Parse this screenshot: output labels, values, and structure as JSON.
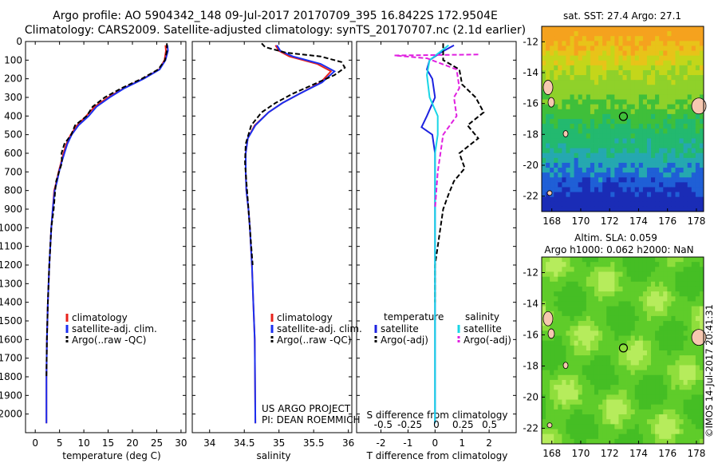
{
  "header": {
    "line1": "Argo profile: AO 5904342_148 09-Jul-2017 20170709_395 16.8422S 172.9504E",
    "line2": "Climatology: CARS2009. Satellite-adjusted climatology: synTS_20170707.nc (2.1d earlier)"
  },
  "colors": {
    "climatology": "#e8221b",
    "satellite": "#1b2ff0",
    "argo": "#000000",
    "sat_t": "#1d22e0",
    "sat_s": "#19d6e6",
    "argo_s": "#e020e0"
  },
  "chart_data": [
    {
      "type": "line",
      "xlabel": "temperature (deg C)",
      "xlim": [
        -2,
        31
      ],
      "xticks": [
        "0",
        "5",
        "10",
        "15",
        "20",
        "25",
        "30"
      ],
      "ylim": [
        2100,
        0
      ],
      "yticks": [
        "0",
        "100",
        "200",
        "300",
        "400",
        "500",
        "600",
        "700",
        "800",
        "900",
        "1000",
        "1100",
        "1200",
        "1300",
        "1400",
        "1500",
        "1600",
        "1700",
        "1800",
        "1900",
        "2000"
      ],
      "legend": [
        "climatology",
        "satellite-adj. clim.",
        "Argo(..raw -QC)"
      ],
      "series": [
        {
          "name": "climatology",
          "x": [
            26.8,
            26.9,
            26.6,
            25.5,
            22.2,
            18.3,
            15,
            12.2,
            10.5,
            8.6,
            7.3,
            6.4,
            5.8,
            5.3,
            4.8,
            4.4,
            3.9,
            3.6,
            3.3,
            2.9,
            2.6,
            2.4,
            2.3,
            2.3
          ],
          "y": [
            20,
            50,
            100,
            150,
            200,
            250,
            300,
            350,
            400,
            450,
            500,
            550,
            600,
            650,
            700,
            750,
            800,
            900,
            1000,
            1200,
            1400,
            1600,
            1800,
            2050
          ]
        },
        {
          "name": "satellite-adj. clim.",
          "x": [
            27.2,
            27.3,
            26.8,
            25.6,
            22.3,
            18.4,
            15.3,
            12.6,
            11,
            8.9,
            7.5,
            6.6,
            6,
            5.4,
            4.9,
            4.5,
            4,
            3.6,
            3.3,
            2.9,
            2.6,
            2.4,
            2.3,
            2.3
          ],
          "y": [
            20,
            50,
            100,
            150,
            200,
            250,
            300,
            350,
            400,
            450,
            500,
            550,
            600,
            650,
            700,
            750,
            800,
            900,
            1000,
            1200,
            1400,
            1600,
            1800,
            2050
          ]
        },
        {
          "name": "Argo(..raw -QC)",
          "x": [
            27.1,
            27.1,
            26.7,
            25.3,
            21.9,
            17.8,
            14.3,
            11.8,
            10.6,
            8.2,
            7.4,
            6,
            5.4,
            5.5,
            4.9,
            4.3,
            4.1,
            3.8,
            3.3,
            2.9,
            2.6,
            2.4,
            2.3
          ],
          "y": [
            10,
            50,
            100,
            150,
            200,
            250,
            300,
            350,
            400,
            450,
            500,
            550,
            600,
            650,
            700,
            750,
            800,
            900,
            1000,
            1200,
            1400,
            1600,
            1800
          ]
        }
      ]
    },
    {
      "type": "line",
      "xlabel": "salinity",
      "xlim": [
        33.75,
        36.05
      ],
      "xticks": [
        "34",
        "34.5",
        "35",
        "35.5",
        "36"
      ],
      "ylim": [
        2100,
        0
      ],
      "legend": [
        "climatology",
        "satellite-adj. clim.",
        "Argo(..raw -QC)"
      ],
      "annotation": [
        "US ARGO PROJECT",
        "PI: DEAN ROEMMICH"
      ],
      "series": [
        {
          "name": "climatology",
          "x": [
            34.95,
            35,
            35.15,
            35.55,
            35.75,
            35.6,
            35.3,
            35.05,
            34.85,
            34.65,
            34.55,
            34.52,
            34.52,
            34.53,
            34.56,
            34.58,
            34.61,
            34.63,
            34.65,
            34.66
          ],
          "y": [
            20,
            50,
            80,
            120,
            160,
            220,
            280,
            330,
            380,
            450,
            520,
            600,
            700,
            800,
            900,
            1000,
            1200,
            1400,
            1600,
            2050
          ]
        },
        {
          "name": "satellite-adj. clim.",
          "x": [
            34.97,
            35.02,
            35.2,
            35.6,
            35.8,
            35.62,
            35.3,
            35.05,
            34.85,
            34.66,
            34.55,
            34.52,
            34.52,
            34.53,
            34.56,
            34.58,
            34.61,
            34.63,
            34.65,
            34.66
          ],
          "y": [
            20,
            50,
            80,
            120,
            160,
            220,
            280,
            330,
            380,
            450,
            520,
            600,
            700,
            800,
            900,
            1000,
            1200,
            1400,
            1600,
            2050
          ]
        },
        {
          "name": "Argo(..raw -QC)",
          "x": [
            34.75,
            34.8,
            35.1,
            35.6,
            35.9,
            35.95,
            35.8,
            35.5,
            35.2,
            34.95,
            34.75,
            34.6,
            34.52,
            34.51,
            34.53,
            34.55,
            34.58,
            34.62
          ],
          "y": [
            10,
            30,
            60,
            80,
            110,
            140,
            180,
            230,
            280,
            330,
            380,
            450,
            550,
            650,
            750,
            850,
            1000,
            1200
          ]
        }
      ]
    },
    {
      "type": "line",
      "xlabel": "T difference from climatology",
      "xlim": [
        -2.9,
        3.0
      ],
      "xticks": [
        "-2",
        "-1",
        "0",
        "1",
        "2"
      ],
      "top_label": "S difference from climatology",
      "top_ticks": [
        "-0.5",
        "-0.25",
        "0",
        "0.25",
        "0.5"
      ],
      "ylim": [
        2100,
        0
      ],
      "legend_titles": [
        "temperature",
        "salinity"
      ],
      "legend": [
        "satellite",
        "Argo(-adj)",
        "satellite",
        "Argo(-adj)"
      ],
      "series": [
        {
          "name": "satellite",
          "x": [
            0.7,
            0.2,
            -0.2,
            -0.3,
            -0.1,
            0,
            -0.3,
            -0.5,
            -0.1,
            0,
            0,
            0,
            0,
            0
          ],
          "y": [
            20,
            60,
            100,
            150,
            200,
            300,
            400,
            460,
            500,
            600,
            800,
            1000,
            1500,
            2050
          ]
        },
        {
          "name": "Argo(-adj)",
          "x": [
            0.3,
            0.3,
            0.9,
            1,
            1.5,
            1.8,
            1.2,
            1.6,
            0.9,
            1.1,
            0.7,
            0.5,
            0.3,
            0.2,
            0.1,
            0,
            0
          ],
          "y": [
            10,
            100,
            150,
            230,
            300,
            380,
            450,
            520,
            600,
            680,
            750,
            820,
            900,
            1000,
            1100,
            1200,
            1400
          ]
        },
        {
          "name": "satellite",
          "x": [
            0.5,
            -0.2,
            -0.3,
            -0.2,
            0.1,
            0.1,
            0,
            0,
            0,
            0
          ],
          "y": [
            20,
            100,
            180,
            300,
            400,
            500,
            600,
            800,
            1200,
            2050
          ]
        },
        {
          "name": "Argo(-adj)",
          "x": [
            1.6,
            -1.5,
            -0.3,
            0.8,
            0.9,
            0.7,
            0.8,
            0.3,
            0.2,
            0.1,
            0
          ],
          "y": [
            70,
            75,
            90,
            150,
            250,
            300,
            400,
            500,
            600,
            700,
            900
          ]
        }
      ]
    }
  ],
  "maps": {
    "sst": {
      "title": "sat. SST: 27.4 Argo: 27.1",
      "yticks": [
        "-12",
        "-14",
        "-16",
        "-18",
        "-20",
        "-22"
      ],
      "xticks": [
        "168",
        "170",
        "172",
        "174",
        "176",
        "178"
      ]
    },
    "sla": {
      "title_1": "Altim. SLA: 0.059",
      "title_2": "Argo h1000: 0.062 h2000: NaN",
      "yticks": [
        "-12",
        "-14",
        "-16",
        "-18",
        "-20",
        "-22"
      ],
      "xticks": [
        "168",
        "170",
        "172",
        "174",
        "176",
        "178"
      ]
    },
    "float_lon": 172.95,
    "float_lat": -16.84
  },
  "footer": {
    "credit": "©IMOS 14-Jul-2017 20:41:31"
  }
}
